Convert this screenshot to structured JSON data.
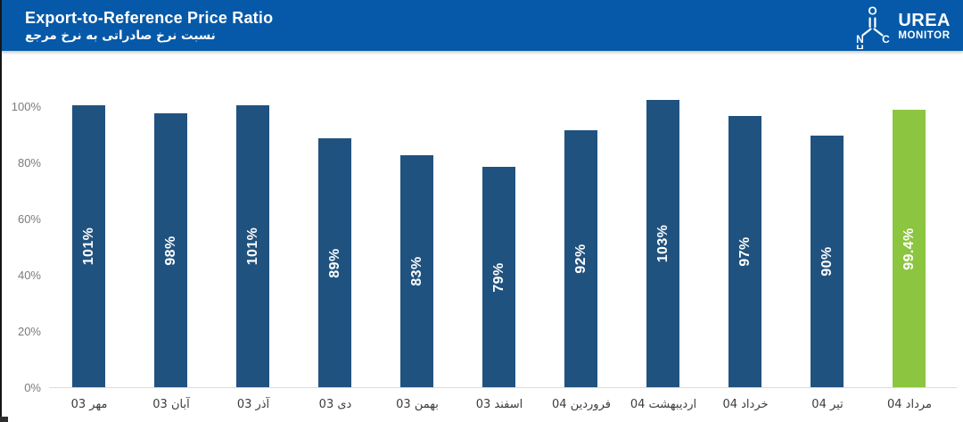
{
  "header": {
    "title": "Export-to-Reference Price Ratio",
    "subtitle_fa": "نسبت نرخ صادراتی به نرخ مرجع",
    "background_color": "#0559A8",
    "logo": {
      "name": "UREA",
      "suffix": "MONITOR",
      "atoms": {
        "o": "O",
        "n": "N",
        "h": "H",
        "c": "C"
      }
    }
  },
  "chart_data": {
    "type": "bar",
    "title": "Export-to-Reference Price Ratio",
    "categories": [
      "مهر 03",
      "آبان 03",
      "آذر 03",
      "دی 03",
      "بهمن 03",
      "اسفند 03",
      "فروردین 04",
      "اردیبهشت 04",
      "خرداد 04",
      "تیر 04",
      "مرداد 04"
    ],
    "values": [
      101,
      98,
      101,
      89,
      83,
      79,
      92,
      103,
      97,
      90,
      99.4
    ],
    "bar_labels": [
      "101%",
      "98%",
      "101%",
      "89%",
      "83%",
      "79%",
      "92%",
      "103%",
      "97%",
      "90%",
      "99.4%"
    ],
    "highlight_index": 10,
    "y_ticks": [
      "100%",
      "80%",
      "60%",
      "40%",
      "20%",
      "0%"
    ],
    "ylim": [
      0,
      104
    ],
    "grid": false,
    "legend": "none",
    "bar_color": "#20527F",
    "highlight_color": "#8CC540",
    "value_label_color": "#FFFFFF"
  }
}
